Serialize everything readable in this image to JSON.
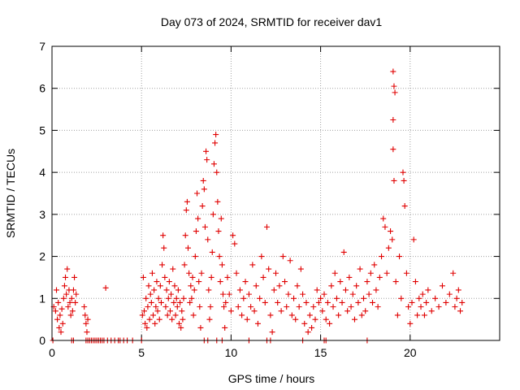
{
  "chart_data": {
    "type": "scatter",
    "title": "Day 073 of 2024, SRMTID for receiver dav1",
    "xlabel": "GPS time / hours",
    "ylabel": "SRMTID / TECUs",
    "xlim": [
      0,
      25
    ],
    "ylim": [
      0,
      7
    ],
    "x_ticks": [
      0,
      5,
      10,
      15,
      20
    ],
    "y_ticks": [
      0,
      1,
      2,
      3,
      4,
      5,
      6,
      7
    ],
    "x_tick_labels": [
      "0",
      "5",
      "10",
      "15",
      "20"
    ],
    "y_tick_labels": [
      "0",
      "1",
      "2",
      "3",
      "4",
      "5",
      "6",
      "7"
    ],
    "grid": true,
    "marker": "+",
    "color": "#e00000",
    "series": [
      {
        "name": "SRMTID",
        "points": [
          [
            0.05,
            0
          ],
          [
            0.1,
            0.8
          ],
          [
            0.2,
            0.7
          ],
          [
            0.25,
            1.2
          ],
          [
            0.3,
            0.5
          ],
          [
            0.35,
            0.9
          ],
          [
            0.4,
            0.3
          ],
          [
            0.45,
            0.6
          ],
          [
            0.5,
            0.2
          ],
          [
            0.55,
            0.75
          ],
          [
            0.6,
            0.4
          ],
          [
            0.65,
            1.0
          ],
          [
            0.7,
            1.3
          ],
          [
            0.75,
            1.5
          ],
          [
            0.8,
            1.1
          ],
          [
            0.85,
            1.7
          ],
          [
            0.9,
            0.8
          ],
          [
            0.95,
            1.2
          ],
          [
            1.0,
            0.9
          ],
          [
            1.05,
            0.6
          ],
          [
            1.1,
            1.0
          ],
          [
            1.15,
            0.7
          ],
          [
            1.2,
            1.2
          ],
          [
            1.25,
            1.5
          ],
          [
            1.3,
            0.9
          ],
          [
            1.35,
            1.1
          ],
          [
            1.1,
            0
          ],
          [
            1.2,
            0
          ],
          [
            1.8,
            0.8
          ],
          [
            1.85,
            0.6
          ],
          [
            1.9,
            0.4
          ],
          [
            1.95,
            0.2
          ],
          [
            2.0,
            0.5
          ],
          [
            1.9,
            0
          ],
          [
            2.0,
            0
          ],
          [
            2.1,
            0
          ],
          [
            2.2,
            0
          ],
          [
            2.3,
            0
          ],
          [
            2.4,
            0
          ],
          [
            2.5,
            0
          ],
          [
            2.6,
            0
          ],
          [
            2.7,
            0
          ],
          [
            2.8,
            0
          ],
          [
            2.9,
            0
          ],
          [
            3.0,
            1.25
          ],
          [
            3.1,
            0
          ],
          [
            3.3,
            0
          ],
          [
            3.5,
            0
          ],
          [
            3.7,
            0
          ],
          [
            3.8,
            0
          ],
          [
            4.0,
            0
          ],
          [
            4.2,
            0
          ],
          [
            4.5,
            0
          ],
          [
            5.0,
            0
          ],
          [
            5.05,
            0.6
          ],
          [
            5.1,
            1.5
          ],
          [
            5.15,
            0.7
          ],
          [
            5.2,
            0.4
          ],
          [
            5.25,
            1.0
          ],
          [
            5.3,
            0.3
          ],
          [
            5.35,
            0.8
          ],
          [
            5.4,
            1.3
          ],
          [
            5.45,
            0.5
          ],
          [
            5.5,
            1.1
          ],
          [
            5.55,
            0.9
          ],
          [
            5.6,
            1.6
          ],
          [
            5.65,
            0.6
          ],
          [
            5.7,
            1.2
          ],
          [
            5.75,
            0.4
          ],
          [
            5.8,
            0.8
          ],
          [
            5.85,
            1.4
          ],
          [
            5.9,
            0.7
          ],
          [
            5.95,
            1.0
          ],
          [
            6.0,
            0.5
          ],
          [
            6.05,
            1.3
          ],
          [
            6.1,
            0.9
          ],
          [
            6.15,
            1.8
          ],
          [
            6.2,
            2.5
          ],
          [
            6.25,
            2.2
          ],
          [
            6.3,
            1.5
          ],
          [
            6.35,
            0.8
          ],
          [
            6.4,
            1.2
          ],
          [
            6.45,
            0.6
          ],
          [
            6.5,
            1.0
          ],
          [
            6.55,
            1.4
          ],
          [
            6.6,
            0.7
          ],
          [
            6.65,
            1.1
          ],
          [
            6.7,
            0.5
          ],
          [
            6.75,
            1.7
          ],
          [
            6.8,
            0.9
          ],
          [
            6.85,
            1.3
          ],
          [
            6.9,
            0.6
          ],
          [
            6.95,
            1.0
          ],
          [
            7.0,
            0.8
          ],
          [
            7.05,
            1.2
          ],
          [
            7.1,
            0.4
          ],
          [
            7.15,
            0.9
          ],
          [
            7.2,
            0.3
          ],
          [
            7.25,
            0.7
          ],
          [
            7.3,
            0.5
          ],
          [
            7.35,
            1.0
          ],
          [
            7.4,
            1.8
          ],
          [
            7.45,
            2.5
          ],
          [
            7.5,
            3.1
          ],
          [
            7.55,
            3.3
          ],
          [
            7.6,
            2.2
          ],
          [
            7.65,
            1.6
          ],
          [
            7.7,
            0.9
          ],
          [
            7.75,
            1.3
          ],
          [
            7.8,
            1.0
          ],
          [
            7.85,
            1.5
          ],
          [
            7.9,
            0.6
          ],
          [
            7.95,
            1.2
          ],
          [
            8.0,
            2.0
          ],
          [
            8.05,
            2.6
          ],
          [
            8.1,
            3.5
          ],
          [
            8.15,
            2.9
          ],
          [
            8.2,
            1.4
          ],
          [
            8.25,
            0.8
          ],
          [
            8.3,
            0.3
          ],
          [
            8.35,
            1.6
          ],
          [
            8.4,
            3.2
          ],
          [
            8.45,
            3.8
          ],
          [
            8.5,
            3.6
          ],
          [
            8.55,
            2.7
          ],
          [
            8.6,
            4.5
          ],
          [
            8.65,
            4.3
          ],
          [
            8.7,
            2.4
          ],
          [
            8.75,
            1.2
          ],
          [
            8.8,
            0.5
          ],
          [
            8.85,
            0.8
          ],
          [
            8.9,
            1.5
          ],
          [
            8.95,
            2.1
          ],
          [
            9.0,
            3.0
          ],
          [
            9.05,
            4.2
          ],
          [
            9.1,
            4.7
          ],
          [
            9.15,
            4.9
          ],
          [
            9.2,
            4.0
          ],
          [
            9.25,
            3.3
          ],
          [
            9.3,
            2.6
          ],
          [
            9.35,
            2.0
          ],
          [
            9.4,
            1.4
          ],
          [
            9.45,
            2.9
          ],
          [
            9.5,
            1.8
          ],
          [
            9.55,
            1.1
          ],
          [
            9.6,
            0.8
          ],
          [
            9.65,
            0.3
          ],
          [
            8.5,
            0
          ],
          [
            8.7,
            0
          ],
          [
            9.2,
            0
          ],
          [
            9.5,
            0
          ],
          [
            9.7,
            0.9
          ],
          [
            9.8,
            1.5
          ],
          [
            9.9,
            1.1
          ],
          [
            10.0,
            0.7
          ],
          [
            10.1,
            2.5
          ],
          [
            10.2,
            2.3
          ],
          [
            10.3,
            1.6
          ],
          [
            10.4,
            0.8
          ],
          [
            10.5,
            1.2
          ],
          [
            10.6,
            0.6
          ],
          [
            10.7,
            1.0
          ],
          [
            10.8,
            1.4
          ],
          [
            10.9,
            0.5
          ],
          [
            11.0,
            1.1
          ],
          [
            11.1,
            0.8
          ],
          [
            11.2,
            1.8
          ],
          [
            11.3,
            0.7
          ],
          [
            11.4,
            1.3
          ],
          [
            11.5,
            0.4
          ],
          [
            11.6,
            1.0
          ],
          [
            11.7,
            2.0
          ],
          [
            11.8,
            1.5
          ],
          [
            11.9,
            0.9
          ],
          [
            12.0,
            2.7
          ],
          [
            12.1,
            1.7
          ],
          [
            12.2,
            0.6
          ],
          [
            12.3,
            0.2
          ],
          [
            12.4,
            1.2
          ],
          [
            12.5,
            1.6
          ],
          [
            12.6,
            0.9
          ],
          [
            12.7,
            1.3
          ],
          [
            12.8,
            0.7
          ],
          [
            12.9,
            2.0
          ],
          [
            13.0,
            1.4
          ],
          [
            13.1,
            0.8
          ],
          [
            13.2,
            1.1
          ],
          [
            13.3,
            1.9
          ],
          [
            13.4,
            0.6
          ],
          [
            13.5,
            1.0
          ],
          [
            13.6,
            0.5
          ],
          [
            13.7,
            1.3
          ],
          [
            13.8,
            0.8
          ],
          [
            13.9,
            1.7
          ],
          [
            14.0,
            1.1
          ],
          [
            14.1,
            0.4
          ],
          [
            14.2,
            0.9
          ],
          [
            14.3,
            0.2
          ],
          [
            14.4,
            0.6
          ],
          [
            14.5,
            0.3
          ],
          [
            14.6,
            0.8
          ],
          [
            14.7,
            0.5
          ],
          [
            14.8,
            1.2
          ],
          [
            14.9,
            0.9
          ],
          [
            15.0,
            1.0
          ],
          [
            11.0,
            0
          ],
          [
            12.0,
            0
          ],
          [
            12.2,
            0
          ],
          [
            14.0,
            0
          ],
          [
            15.2,
            0
          ],
          [
            15.3,
            0
          ],
          [
            17.6,
            0
          ],
          [
            15.1,
            0.7
          ],
          [
            15.2,
            1.1
          ],
          [
            15.3,
            0.5
          ],
          [
            15.4,
            0.9
          ],
          [
            15.5,
            0.4
          ],
          [
            15.6,
            1.3
          ],
          [
            15.7,
            0.8
          ],
          [
            15.8,
            1.6
          ],
          [
            15.9,
            1.0
          ],
          [
            16.0,
            0.6
          ],
          [
            16.1,
            1.4
          ],
          [
            16.2,
            0.9
          ],
          [
            16.3,
            2.1
          ],
          [
            16.4,
            1.2
          ],
          [
            16.5,
            0.7
          ],
          [
            16.6,
            1.5
          ],
          [
            16.7,
            0.8
          ],
          [
            16.8,
            1.1
          ],
          [
            16.9,
            0.5
          ],
          [
            17.0,
            1.3
          ],
          [
            17.1,
            0.9
          ],
          [
            17.2,
            1.7
          ],
          [
            17.3,
            0.6
          ],
          [
            17.4,
            1.0
          ],
          [
            17.5,
            0.7
          ],
          [
            17.6,
            1.4
          ],
          [
            17.7,
            1.1
          ],
          [
            17.8,
            1.6
          ],
          [
            17.9,
            0.9
          ],
          [
            18.0,
            1.8
          ],
          [
            18.1,
            1.2
          ],
          [
            18.2,
            0.8
          ],
          [
            18.3,
            1.5
          ],
          [
            18.4,
            2.0
          ],
          [
            18.5,
            2.9
          ],
          [
            18.6,
            2.7
          ],
          [
            18.7,
            1.6
          ],
          [
            18.8,
            2.2
          ],
          [
            18.9,
            2.6
          ],
          [
            19.0,
            2.4
          ],
          [
            19.05,
            6.4
          ],
          [
            19.1,
            6.05
          ],
          [
            19.15,
            5.9
          ],
          [
            19.05,
            5.25
          ],
          [
            19.05,
            4.55
          ],
          [
            19.1,
            3.8
          ],
          [
            19.2,
            1.4
          ],
          [
            19.3,
            0.6
          ],
          [
            19.4,
            2.0
          ],
          [
            19.5,
            1.0
          ],
          [
            19.6,
            4.0
          ],
          [
            19.65,
            3.8
          ],
          [
            19.7,
            3.2
          ],
          [
            19.8,
            1.6
          ],
          [
            19.9,
            0.8
          ],
          [
            20.0,
            0.4
          ],
          [
            20.1,
            0.9
          ],
          [
            20.2,
            2.4
          ],
          [
            20.3,
            1.4
          ],
          [
            20.4,
            0.6
          ],
          [
            20.5,
            1.0
          ],
          [
            20.6,
            0.8
          ],
          [
            20.7,
            1.1
          ],
          [
            20.8,
            0.6
          ],
          [
            20.9,
            0.9
          ],
          [
            21.0,
            1.2
          ],
          [
            21.2,
            0.7
          ],
          [
            21.4,
            1.0
          ],
          [
            21.6,
            0.8
          ],
          [
            21.8,
            1.3
          ],
          [
            22.0,
            0.9
          ],
          [
            22.2,
            1.1
          ],
          [
            22.4,
            1.6
          ],
          [
            22.5,
            0.8
          ],
          [
            22.6,
            1.0
          ],
          [
            22.7,
            1.2
          ],
          [
            22.8,
            0.7
          ],
          [
            22.9,
            0.9
          ]
        ]
      }
    ]
  }
}
